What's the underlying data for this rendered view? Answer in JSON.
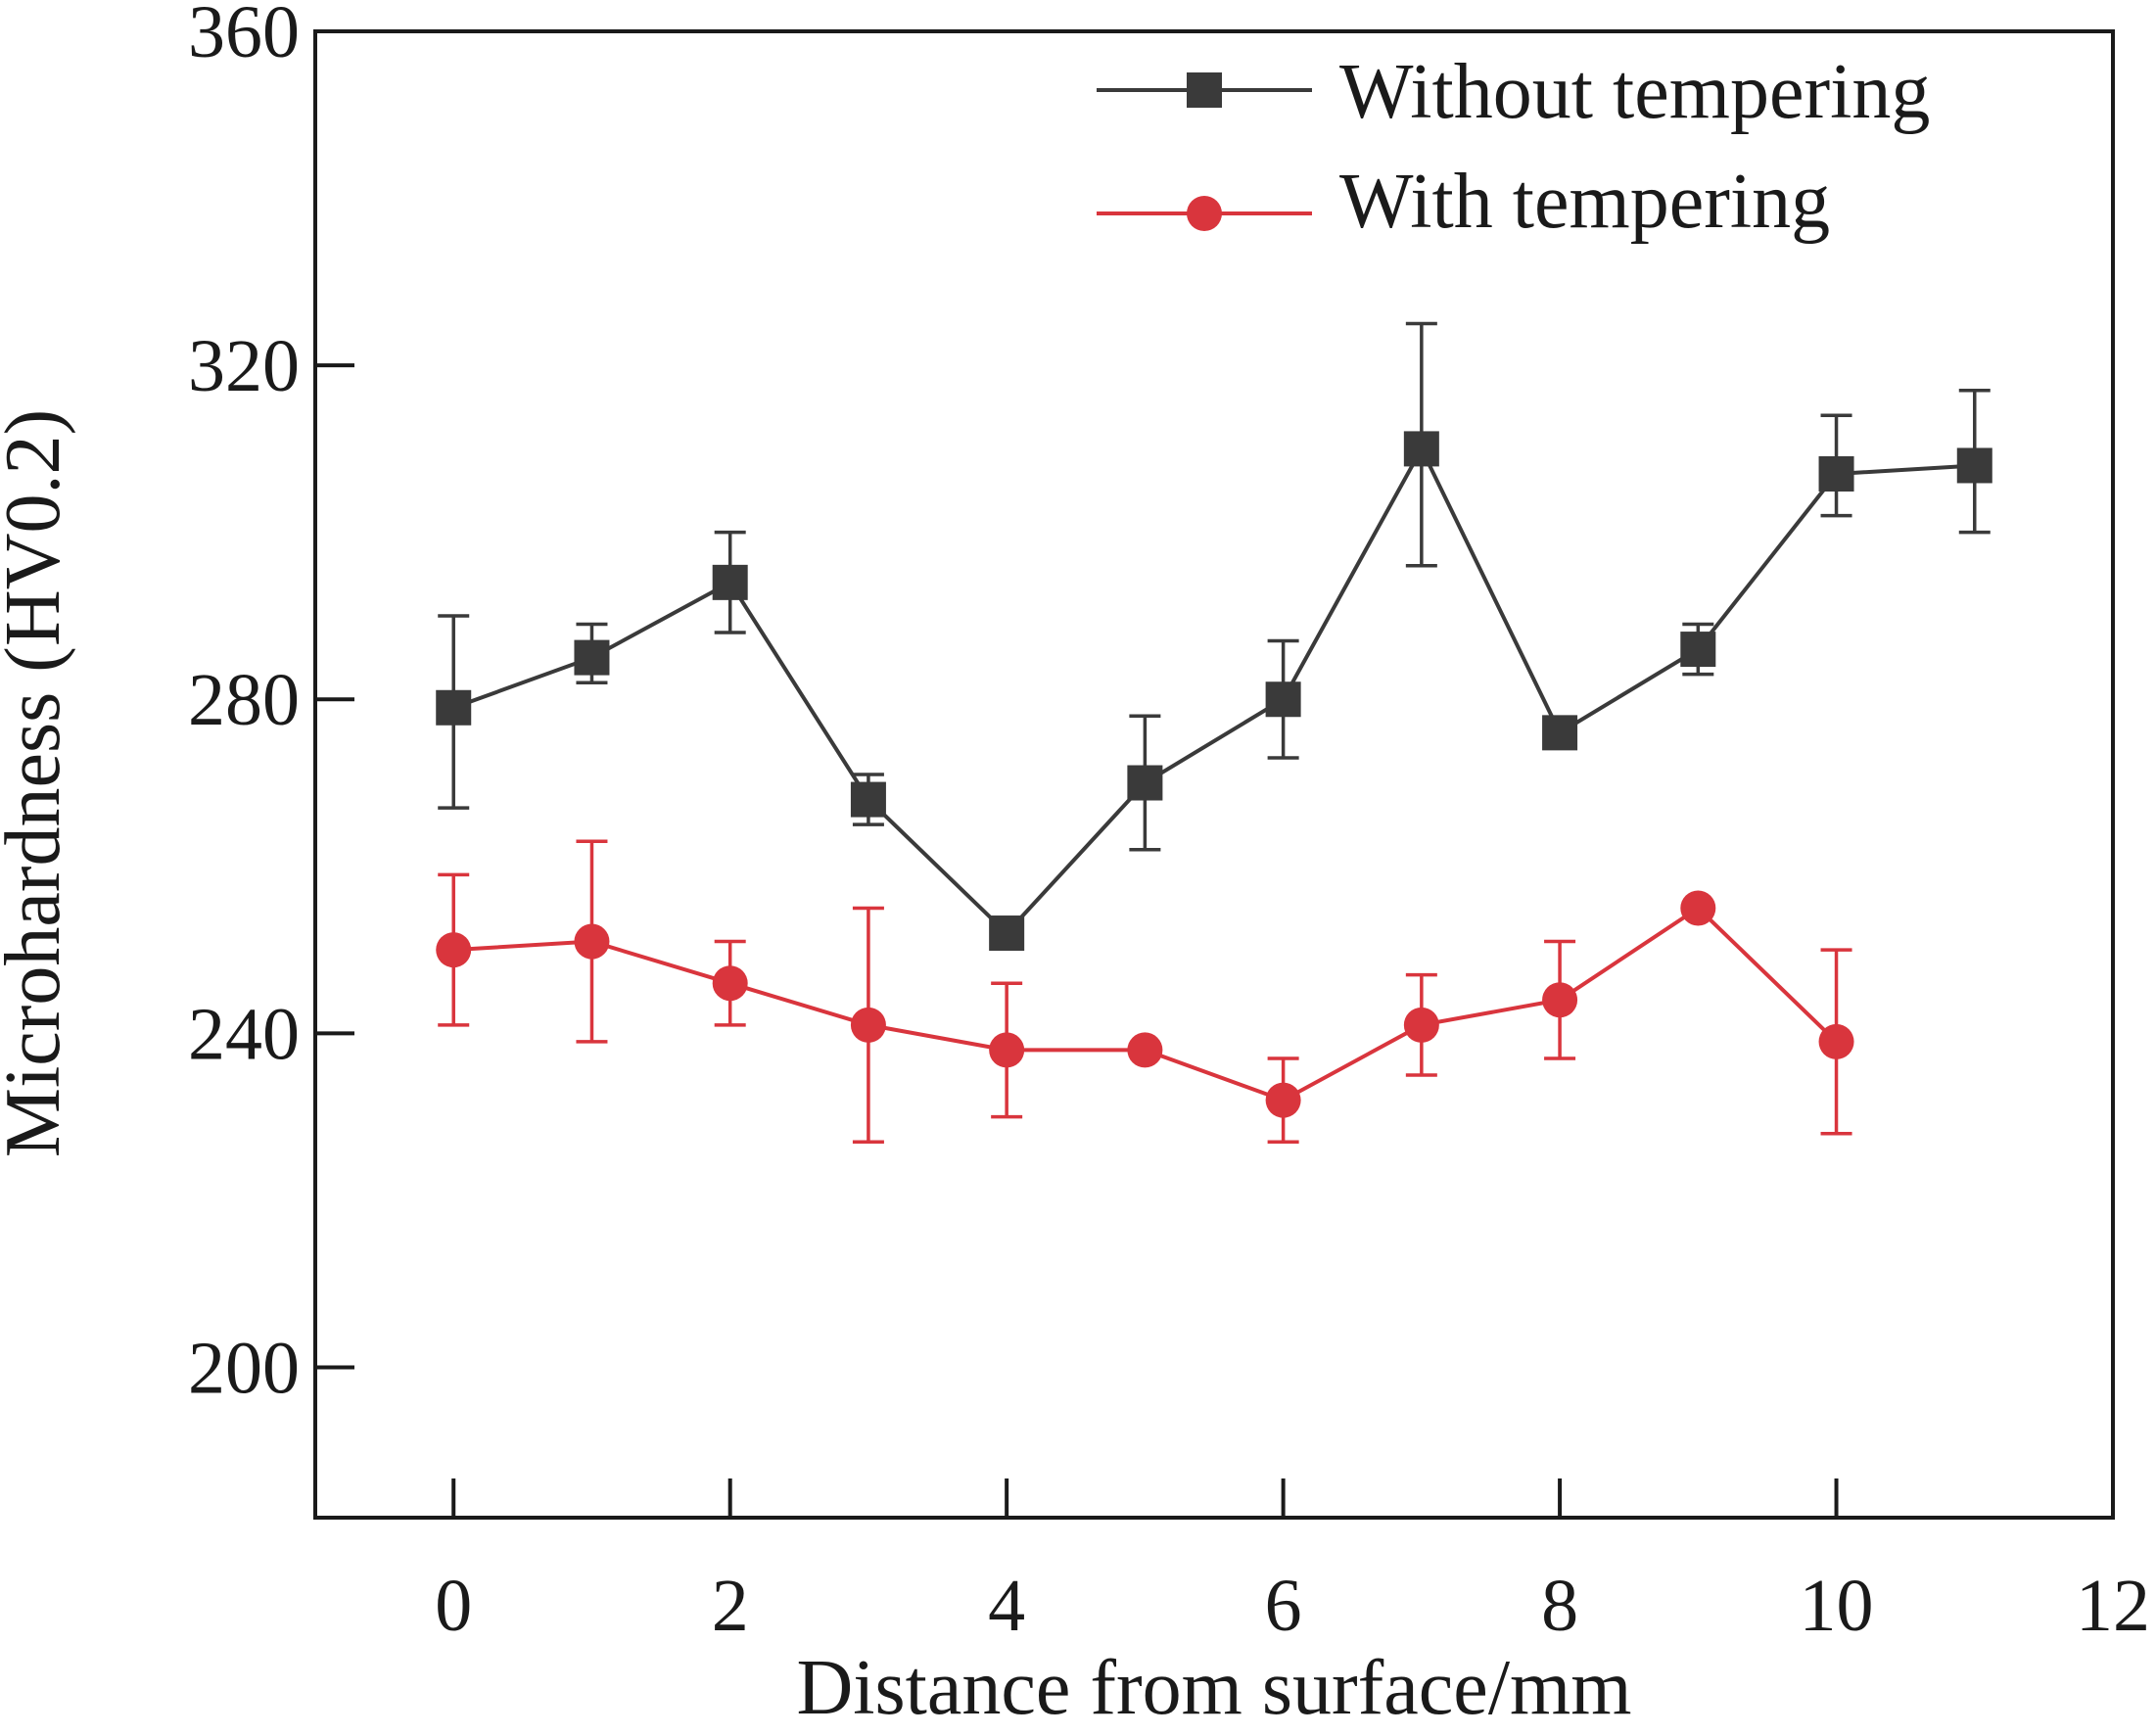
{
  "chart_data": {
    "type": "line",
    "title": "",
    "xlabel": "Distance from surface/mm",
    "ylabel": "Microhardness (HV0.2)",
    "xlim": [
      -1,
      12
    ],
    "ylim": [
      182,
      360
    ],
    "xticks": [
      0,
      2,
      4,
      6,
      8,
      10,
      12
    ],
    "yticks": [
      200,
      240,
      280,
      320,
      360
    ],
    "xtick_labels": [
      "0",
      "2",
      "4",
      "6",
      "8",
      "10",
      "12"
    ],
    "ytick_labels": [
      "200",
      "240",
      "280",
      "320",
      "360"
    ],
    "legend_position": "top-right",
    "grid": false,
    "series": [
      {
        "name": "Without tempering",
        "marker": "square",
        "color": "#3a3a3a",
        "x": [
          0,
          1,
          2,
          3,
          4,
          5,
          6,
          7,
          8,
          9,
          10,
          11
        ],
        "y": [
          279,
          285,
          294,
          268,
          252,
          270,
          280,
          310,
          276,
          286,
          307,
          308
        ],
        "err_low": [
          267,
          282,
          288,
          265,
          252,
          262,
          273,
          296,
          276,
          283,
          302,
          300
        ],
        "err_high": [
          290,
          289,
          300,
          271,
          252,
          278,
          287,
          325,
          276,
          289,
          314,
          317
        ]
      },
      {
        "name": "With tempering",
        "marker": "circle",
        "color": "#d9353d",
        "x": [
          0,
          1,
          2,
          3,
          4,
          5,
          6,
          7,
          8,
          9,
          10
        ],
        "y": [
          250,
          251,
          246,
          241,
          238,
          238,
          232,
          241,
          244,
          255,
          239
        ],
        "err_low": [
          241,
          239,
          241,
          227,
          230,
          238,
          227,
          235,
          237,
          255,
          228
        ],
        "err_high": [
          259,
          263,
          251,
          255,
          246,
          238,
          237,
          247,
          251,
          255,
          250
        ]
      }
    ]
  }
}
